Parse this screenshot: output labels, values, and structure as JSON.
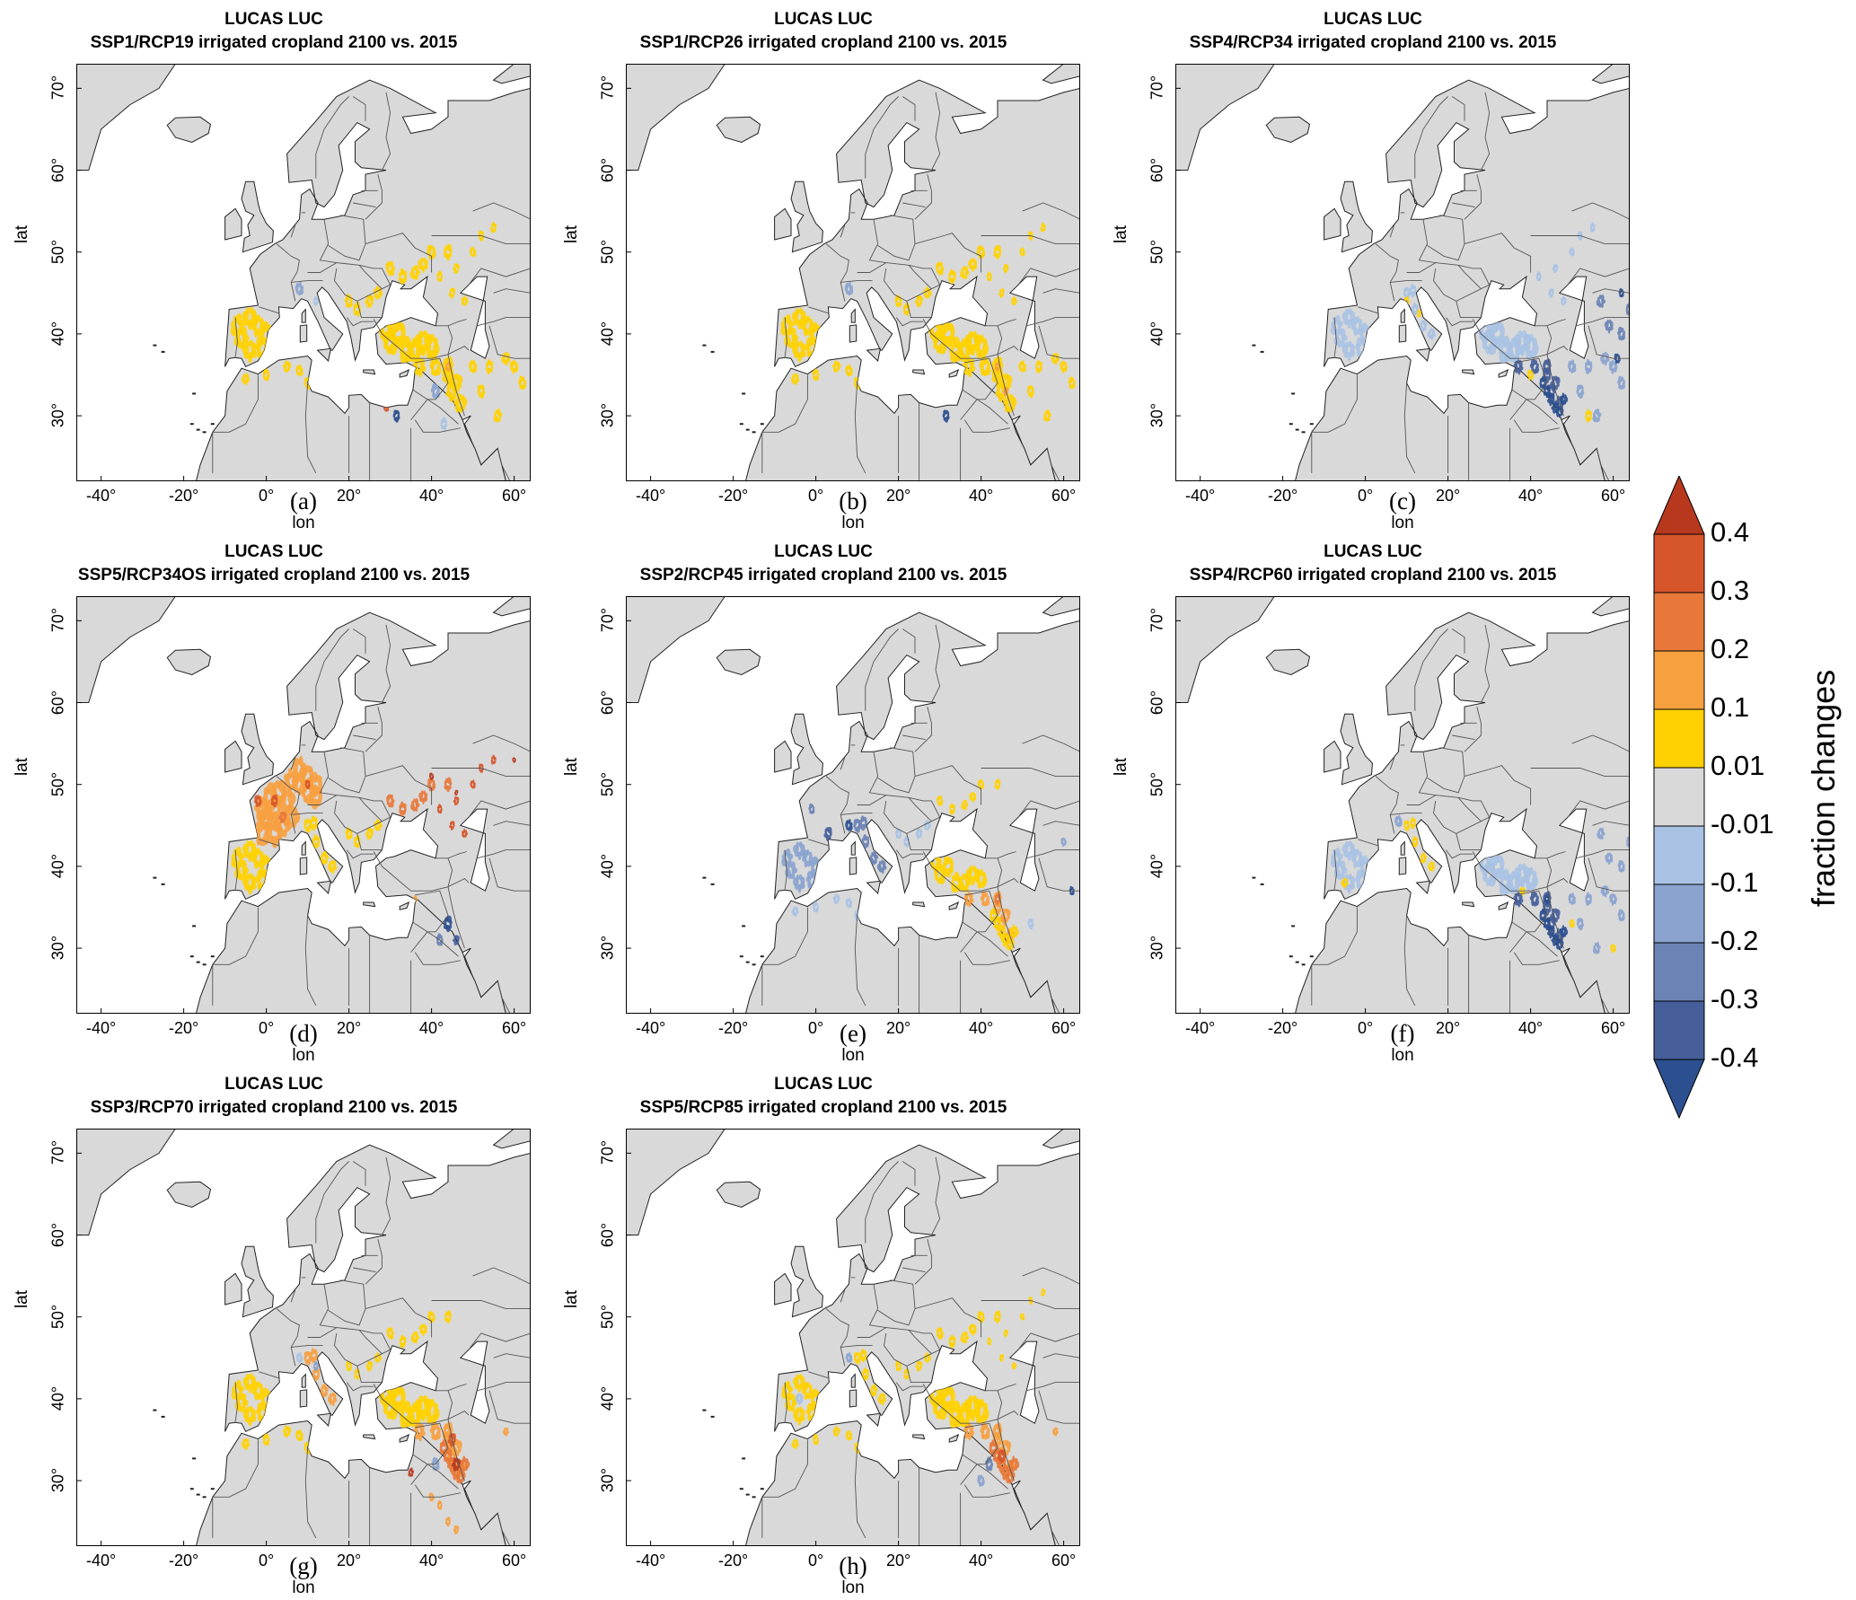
{
  "colors": {
    "land": "#d9d9d9",
    "sea": "#ffffff",
    "border": "#555555",
    "scale": [
      "#2c4f8f",
      "#465f9a",
      "#6b83b5",
      "#8aa3cf",
      "#a9c2e3",
      "#d9d9d9",
      "#ffd100",
      "#f7a040",
      "#e8783a",
      "#d6552b",
      "#b8381e"
    ]
  },
  "xaxis_label": "lon",
  "yaxis_label": "lat",
  "x_ticks": [
    "-40°",
    "-20°",
    "0°",
    "20°",
    "40°",
    "60°"
  ],
  "y_ticks": [
    "70°",
    "60°",
    "50°",
    "40°",
    "30°"
  ],
  "panels": [
    {
      "title_line1": "LUCAS LUC",
      "title_line2": "SSP1/RCP19 irrigated cropland 2100 vs. 2015",
      "label": "(a)"
    },
    {
      "title_line1": "LUCAS LUC",
      "title_line2": "SSP1/RCP26 irrigated cropland 2100 vs. 2015",
      "label": "(b)"
    },
    {
      "title_line1": "LUCAS LUC",
      "title_line2": "SSP4/RCP34 irrigated cropland 2100 vs. 2015",
      "label": "(c)"
    },
    {
      "title_line1": "LUCAS LUC",
      "title_line2": "SSP5/RCP34OS irrigated cropland 2100 vs. 2015",
      "label": "(d)"
    },
    {
      "title_line1": "LUCAS LUC",
      "title_line2": "SSP2/RCP45 irrigated cropland 2100 vs. 2015",
      "label": "(e)"
    },
    {
      "title_line1": "LUCAS LUC",
      "title_line2": "SSP4/RCP60 irrigated cropland 2100 vs. 2015",
      "label": "(f)"
    },
    {
      "title_line1": "LUCAS LUC",
      "title_line2": "SSP3/RCP70 irrigated cropland 2100 vs. 2015",
      "label": "(g)"
    },
    {
      "title_line1": "LUCAS LUC",
      "title_line2": "SSP5/RCP85 irrigated cropland 2100 vs. 2015",
      "label": "(h)"
    }
  ],
  "colorbar": {
    "title": "fraction changes",
    "labels": [
      "0.4",
      "0.3",
      "0.2",
      "0.1",
      "0.01",
      "-0.01",
      "-0.1",
      "-0.2",
      "-0.3",
      "-0.4"
    ]
  }
}
